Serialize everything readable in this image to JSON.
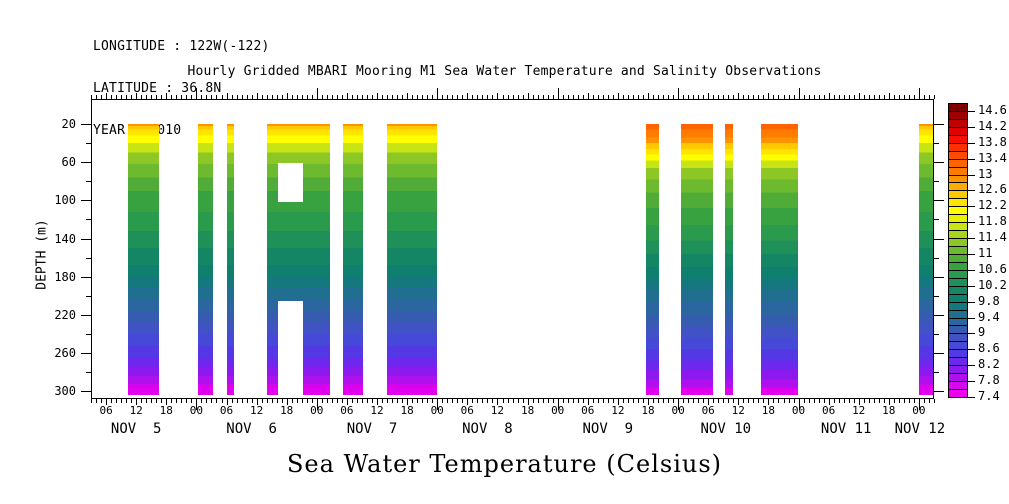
{
  "header": {
    "longitude": "LONGITUDE : 122W(-122)",
    "latitude": "LATITUDE : 36.8N",
    "year": "YEAR : 2010"
  },
  "title": "Hourly Gridded MBARI Mooring M1 Sea Water Temperature and Salinity Observations",
  "footer_title": "Sea Water Temperature (Celsius)",
  "chart_data": {
    "type": "heatmap",
    "title": "Hourly Gridded MBARI Mooring M1 Sea Water Temperature and Salinity Observations",
    "variable": "Sea Water Temperature (Celsius)",
    "x_axis": {
      "unit": "time, hourly, hours counted from 2010-11-05 00:00",
      "axis_start_hour": 3,
      "axis_end_hour": 171,
      "hour_labels": [
        {
          "t": 6,
          "text": "06"
        },
        {
          "t": 12,
          "text": "12"
        },
        {
          "t": 18,
          "text": "18"
        },
        {
          "t": 24,
          "text": "00"
        },
        {
          "t": 30,
          "text": "06"
        },
        {
          "t": 36,
          "text": "12"
        },
        {
          "t": 42,
          "text": "18"
        },
        {
          "t": 48,
          "text": "00"
        },
        {
          "t": 54,
          "text": "06"
        },
        {
          "t": 60,
          "text": "12"
        },
        {
          "t": 66,
          "text": "18"
        },
        {
          "t": 72,
          "text": "00"
        },
        {
          "t": 78,
          "text": "06"
        },
        {
          "t": 84,
          "text": "12"
        },
        {
          "t": 90,
          "text": "18"
        },
        {
          "t": 96,
          "text": "00"
        },
        {
          "t": 102,
          "text": "06"
        },
        {
          "t": 108,
          "text": "12"
        },
        {
          "t": 114,
          "text": "18"
        },
        {
          "t": 120,
          "text": "00"
        },
        {
          "t": 126,
          "text": "06"
        },
        {
          "t": 132,
          "text": "12"
        },
        {
          "t": 138,
          "text": "18"
        },
        {
          "t": 144,
          "text": "00"
        },
        {
          "t": 150,
          "text": "06"
        },
        {
          "t": 156,
          "text": "12"
        },
        {
          "t": 162,
          "text": "18"
        },
        {
          "t": 168,
          "text": "00"
        }
      ],
      "date_labels": [
        {
          "t": 12,
          "text": "NOV  5"
        },
        {
          "t": 35,
          "text": "NOV  6"
        },
        {
          "t": 59,
          "text": "NOV  7"
        },
        {
          "t": 82,
          "text": "NOV  8"
        },
        {
          "t": 106,
          "text": "NOV  9"
        },
        {
          "t": 129.5,
          "text": "NOV 10"
        },
        {
          "t": 153.5,
          "text": "NOV 11"
        },
        {
          "t": 168.2,
          "text": "NOV 12"
        }
      ],
      "midnight_tick_hours": [
        24,
        48,
        72,
        96,
        120,
        144,
        168
      ]
    },
    "y_axis": {
      "label": "DEPTH (m)",
      "min_depth": 20,
      "max_depth": 300,
      "labeled_ticks": [
        20,
        60,
        100,
        140,
        180,
        220,
        260,
        300
      ],
      "minor_ticks": [
        40,
        80,
        120,
        160,
        200,
        240,
        280
      ]
    },
    "colorbar": {
      "min": 7.4,
      "max": 14.6,
      "step_per_cell": 0.2,
      "labels": [
        "14.6",
        "14.2",
        "13.8",
        "13.4",
        "13",
        "12.6",
        "12.2",
        "11.8",
        "11.4",
        "11",
        "10.6",
        "10.2",
        "9.8",
        "9.4",
        "9",
        "8.6",
        "8.2",
        "7.8",
        "7.4"
      ],
      "cell_colors": [
        "#7e0000",
        "#9e0000",
        "#c00000",
        "#e00000",
        "#f81000",
        "#ff3000",
        "#ff4c00",
        "#ff6400",
        "#ff7c00",
        "#ff9400",
        "#ffac00",
        "#ffc800",
        "#ffe400",
        "#ffff00",
        "#e6f000",
        "#c8e414",
        "#aad51e",
        "#8cc726",
        "#6eba2e",
        "#50ac36",
        "#38a240",
        "#2a9a4c",
        "#1e9058",
        "#148663",
        "#10806e",
        "#15787e",
        "#206f90",
        "#2c66a0",
        "#365cb0",
        "#4052c4",
        "#4648d8",
        "#5438e4",
        "#6c28ec",
        "#8c1aee",
        "#b010ee",
        "#d808ee",
        "#ee00ee"
      ]
    },
    "profiles": {
      "cool": [
        {
          "d": 22,
          "c": "#ff9400"
        },
        {
          "d": 26,
          "c": "#ffc800"
        },
        {
          "d": 32,
          "c": "#ffe400"
        },
        {
          "d": 40,
          "c": "#ffff00"
        },
        {
          "d": 50,
          "c": "#c8e414"
        },
        {
          "d": 62,
          "c": "#8cc726"
        },
        {
          "d": 76,
          "c": "#6eba2e"
        },
        {
          "d": 90,
          "c": "#50ac36"
        },
        {
          "d": 112,
          "c": "#38a240"
        },
        {
          "d": 132,
          "c": "#2a9a4c"
        },
        {
          "d": 150,
          "c": "#1e9058"
        },
        {
          "d": 168,
          "c": "#148663"
        },
        {
          "d": 180,
          "c": "#10806e"
        },
        {
          "d": 192,
          "c": "#15787e"
        },
        {
          "d": 204,
          "c": "#206f90"
        },
        {
          "d": 216,
          "c": "#2c66a0"
        },
        {
          "d": 228,
          "c": "#365cb0"
        },
        {
          "d": 240,
          "c": "#4052c4"
        },
        {
          "d": 252,
          "c": "#4648d8"
        },
        {
          "d": 264,
          "c": "#5438e4"
        },
        {
          "d": 274,
          "c": "#6c28ec"
        },
        {
          "d": 284,
          "c": "#8c1aee"
        },
        {
          "d": 293,
          "c": "#b010ee"
        },
        {
          "d": 304,
          "c": "#e000ee"
        }
      ],
      "warm": [
        {
          "d": 26,
          "c": "#ff6400"
        },
        {
          "d": 34,
          "c": "#ff7c00"
        },
        {
          "d": 40,
          "c": "#ff9400"
        },
        {
          "d": 46,
          "c": "#ffc800"
        },
        {
          "d": 52,
          "c": "#ffe400"
        },
        {
          "d": 58,
          "c": "#ffff00"
        },
        {
          "d": 66,
          "c": "#c8e414"
        },
        {
          "d": 78,
          "c": "#8cc726"
        },
        {
          "d": 92,
          "c": "#6eba2e"
        },
        {
          "d": 108,
          "c": "#50ac36"
        },
        {
          "d": 126,
          "c": "#38a240"
        },
        {
          "d": 142,
          "c": "#2a9a4c"
        },
        {
          "d": 156,
          "c": "#1e9058"
        },
        {
          "d": 170,
          "c": "#148663"
        },
        {
          "d": 182,
          "c": "#10806e"
        },
        {
          "d": 194,
          "c": "#15787e"
        },
        {
          "d": 206,
          "c": "#206f90"
        },
        {
          "d": 220,
          "c": "#2c66a0"
        },
        {
          "d": 232,
          "c": "#365cb0"
        },
        {
          "d": 244,
          "c": "#4052c4"
        },
        {
          "d": 256,
          "c": "#4648d8"
        },
        {
          "d": 268,
          "c": "#5438e4"
        },
        {
          "d": 278,
          "c": "#6c28ec"
        },
        {
          "d": 288,
          "c": "#8c1aee"
        },
        {
          "d": 296,
          "c": "#b010ee"
        },
        {
          "d": 304,
          "c": "#e000ee"
        }
      ]
    },
    "bands": [
      {
        "start_hour": 10.4,
        "end_hour": 16.6,
        "profile": "cool"
      },
      {
        "start_hour": 24.3,
        "end_hour": 27.3,
        "profile": "cool"
      },
      {
        "start_hour": 30.1,
        "end_hour": 31.5,
        "profile": "cool"
      },
      {
        "start_hour": 38.1,
        "end_hour": 50.6,
        "profile": "cool"
      },
      {
        "start_hour": 53.2,
        "end_hour": 57.2,
        "profile": "cool"
      },
      {
        "start_hour": 62.0,
        "end_hour": 72.0,
        "profile": "cool"
      },
      {
        "start_hour": 113.6,
        "end_hour": 116.2,
        "profile": "warm"
      },
      {
        "start_hour": 120.6,
        "end_hour": 127.0,
        "profile": "warm"
      },
      {
        "start_hour": 129.4,
        "end_hour": 131.0,
        "profile": "warm"
      },
      {
        "start_hour": 136.5,
        "end_hour": 143.9,
        "profile": "warm"
      },
      {
        "start_hour": 168.0,
        "end_hour": 171.0,
        "profile": "cool"
      }
    ],
    "holes": [
      {
        "start_hour": 40.3,
        "end_hour": 45.3,
        "top_depth": 61,
        "bottom_depth": 102
      },
      {
        "start_hour": 40.3,
        "end_hour": 45.3,
        "top_depth": 205,
        "bottom_depth": 304
      }
    ]
  }
}
